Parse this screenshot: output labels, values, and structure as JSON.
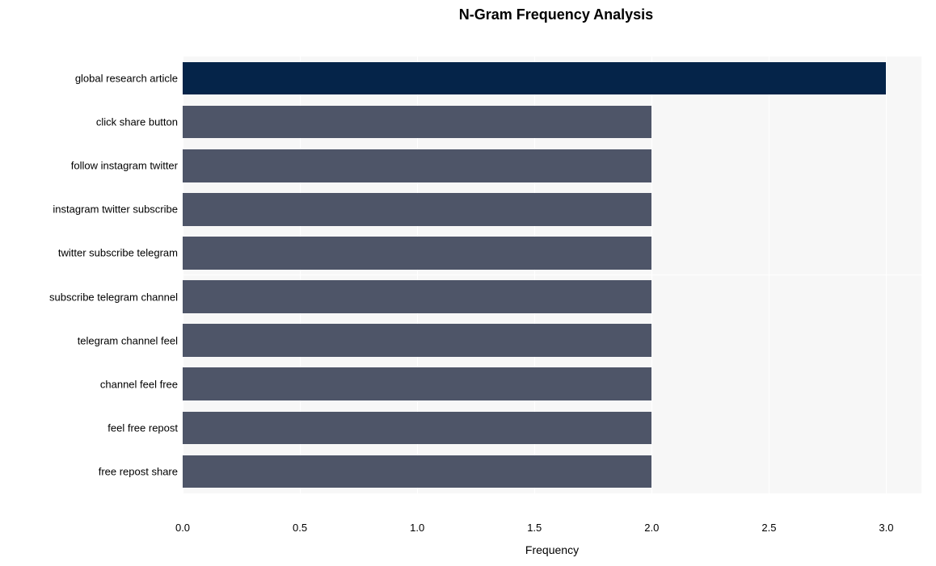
{
  "chart": {
    "type": "bar-horizontal",
    "title": "N-Gram Frequency Analysis",
    "title_fontsize": 18,
    "title_fontweight": "bold",
    "xlabel": "Frequency",
    "label_fontsize": 14,
    "background_color": "#ffffff",
    "band_color": "#f7f7f7",
    "grid_color": "#ffffff",
    "tick_fontsize": 13,
    "xlim": [
      0,
      3.15
    ],
    "xtick_step": 0.5,
    "xticks": [
      "0.0",
      "0.5",
      "1.0",
      "1.5",
      "2.0",
      "2.5",
      "3.0"
    ],
    "bar_thickness_ratio": 0.75,
    "categories": [
      "global research article",
      "click share button",
      "follow instagram twitter",
      "instagram twitter subscribe",
      "twitter subscribe telegram",
      "subscribe telegram channel",
      "telegram channel feel",
      "channel feel free",
      "feel free repost",
      "free repost share"
    ],
    "values": [
      3,
      2,
      2,
      2,
      2,
      2,
      2,
      2,
      2,
      2
    ],
    "bar_colors": [
      "#052449",
      "#4e5568",
      "#4e5568",
      "#4e5568",
      "#4e5568",
      "#4e5568",
      "#4e5568",
      "#4e5568",
      "#4e5568",
      "#4e5568"
    ]
  }
}
